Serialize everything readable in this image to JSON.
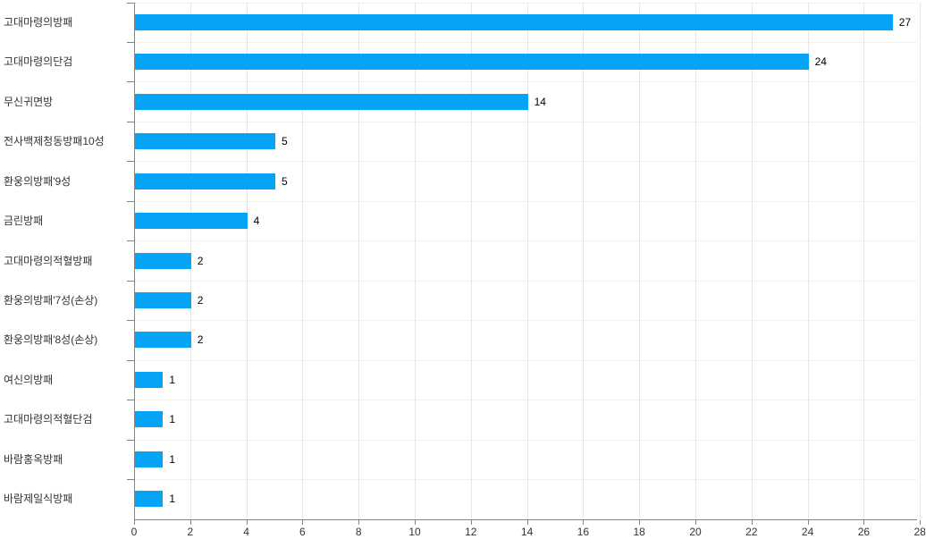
{
  "chart_data": {
    "type": "bar",
    "orientation": "horizontal",
    "title": "",
    "xlabel": "",
    "ylabel": "",
    "categories": [
      "고대마령의방패",
      "고대마령의단검",
      "무신귀면방",
      "전사백제청동방패10성",
      "환웅의방패'9성",
      "금린방패",
      "고대마령의적혈방패",
      "환웅의방패'7성(손상)",
      "환웅의방패'8성(손상)",
      "여신의방패",
      "고대마령의적혈단검",
      "바람홍옥방패",
      "바람제일식방패"
    ],
    "values": [
      27,
      24,
      14,
      5,
      5,
      4,
      2,
      2,
      2,
      1,
      1,
      1,
      1
    ],
    "value_labels_shown": true,
    "x_ticks": [
      0,
      2,
      4,
      6,
      8,
      10,
      12,
      14,
      16,
      18,
      20,
      22,
      24,
      26,
      28
    ],
    "xlim": [
      0,
      28
    ],
    "grid": true,
    "legend": "none",
    "colors": {
      "bar": "#05a4f5",
      "vertical_grid": "#e6e6e6",
      "horizontal_grid": "#f0f0f0",
      "axis": "#848484",
      "category_label": "#333333",
      "value_label": "#000000",
      "tick_label": "#333333",
      "background": "#ffffff"
    }
  }
}
